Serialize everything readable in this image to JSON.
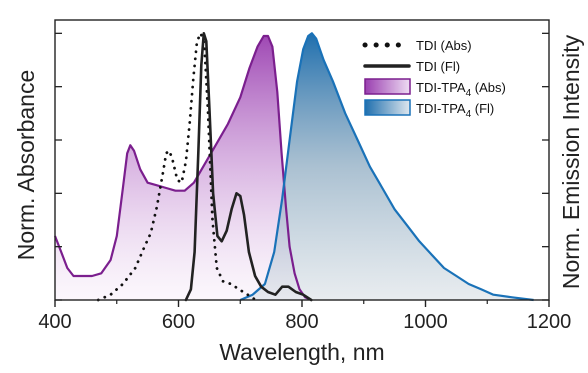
{
  "chart_data": {
    "type": "area",
    "xlabel": "Wavelength, nm",
    "ylabel_left": "Norm. Absorbance",
    "ylabel_right": "Norm. Emission Intensity",
    "xlim": [
      400,
      1200
    ],
    "ylim": [
      0,
      1.05
    ],
    "x_ticks": [
      400,
      600,
      800,
      1000,
      1200
    ],
    "x_tick_labels": [
      "400",
      "600",
      "800",
      "1000",
      "1200"
    ],
    "y_ticks_left": [
      0,
      0.2,
      0.4,
      0.6,
      0.8,
      1.0
    ],
    "y_ticks_right": [
      0,
      0.2,
      0.4,
      0.6,
      0.8,
      1.0
    ],
    "grid": false,
    "legend_position": "top-right",
    "series": [
      {
        "name": "TDI (Abs)",
        "legend_main": "TDI (Abs)",
        "legend_sub": "",
        "legend_suffix": "",
        "style": "dotted",
        "color": "#111111",
        "fill": null,
        "points": [
          [
            470,
            0.0
          ],
          [
            490,
            0.02
          ],
          [
            510,
            0.06
          ],
          [
            530,
            0.12
          ],
          [
            545,
            0.2
          ],
          [
            555,
            0.25
          ],
          [
            565,
            0.35
          ],
          [
            575,
            0.48
          ],
          [
            580,
            0.55
          ],
          [
            585,
            0.56
          ],
          [
            590,
            0.53
          ],
          [
            598,
            0.45
          ],
          [
            605,
            0.44
          ],
          [
            612,
            0.52
          ],
          [
            618,
            0.66
          ],
          [
            624,
            0.83
          ],
          [
            630,
            0.97
          ],
          [
            636,
            1.0
          ],
          [
            642,
            0.96
          ],
          [
            648,
            0.7
          ],
          [
            655,
            0.3
          ],
          [
            662,
            0.12
          ],
          [
            672,
            0.07
          ],
          [
            685,
            0.06
          ],
          [
            698,
            0.04
          ],
          [
            712,
            0.02
          ],
          [
            725,
            0.0
          ]
        ]
      },
      {
        "name": "TDI (Fl)",
        "legend_main": "TDI (Fl)",
        "legend_sub": "",
        "legend_suffix": "",
        "style": "solid",
        "color": "#222222",
        "fill": null,
        "points": [
          [
            612,
            0.0
          ],
          [
            620,
            0.04
          ],
          [
            626,
            0.18
          ],
          [
            632,
            0.55
          ],
          [
            637,
            0.88
          ],
          [
            641,
            1.0
          ],
          [
            645,
            0.97
          ],
          [
            650,
            0.72
          ],
          [
            656,
            0.4
          ],
          [
            663,
            0.24
          ],
          [
            670,
            0.22
          ],
          [
            678,
            0.26
          ],
          [
            686,
            0.34
          ],
          [
            694,
            0.4
          ],
          [
            700,
            0.39
          ],
          [
            706,
            0.32
          ],
          [
            714,
            0.18
          ],
          [
            724,
            0.09
          ],
          [
            734,
            0.05
          ],
          [
            745,
            0.03
          ],
          [
            757,
            0.02
          ],
          [
            768,
            0.05
          ],
          [
            778,
            0.05
          ],
          [
            790,
            0.03
          ],
          [
            802,
            0.02
          ],
          [
            815,
            0.0
          ]
        ]
      },
      {
        "name": "TDI-TPA4 (Abs)",
        "legend_main": "TDI-TPA",
        "legend_sub": "4",
        "legend_suffix": "(Abs)",
        "style": "solid",
        "color": "#7b1f8e",
        "fill": "purple-gradient",
        "points": [
          [
            400,
            0.24
          ],
          [
            410,
            0.18
          ],
          [
            420,
            0.12
          ],
          [
            430,
            0.09
          ],
          [
            445,
            0.09
          ],
          [
            460,
            0.09
          ],
          [
            475,
            0.1
          ],
          [
            490,
            0.15
          ],
          [
            500,
            0.24
          ],
          [
            510,
            0.42
          ],
          [
            517,
            0.55
          ],
          [
            522,
            0.58
          ],
          [
            528,
            0.56
          ],
          [
            538,
            0.49
          ],
          [
            550,
            0.44
          ],
          [
            565,
            0.43
          ],
          [
            580,
            0.42
          ],
          [
            595,
            0.41
          ],
          [
            610,
            0.41
          ],
          [
            625,
            0.44
          ],
          [
            640,
            0.5
          ],
          [
            660,
            0.58
          ],
          [
            680,
            0.66
          ],
          [
            700,
            0.76
          ],
          [
            715,
            0.87
          ],
          [
            728,
            0.95
          ],
          [
            738,
            0.99
          ],
          [
            745,
            0.99
          ],
          [
            752,
            0.95
          ],
          [
            760,
            0.78
          ],
          [
            767,
            0.55
          ],
          [
            774,
            0.35
          ],
          [
            780,
            0.2
          ],
          [
            788,
            0.1
          ],
          [
            796,
            0.04
          ],
          [
            805,
            0.01
          ],
          [
            815,
            0.0
          ]
        ]
      },
      {
        "name": "TDI-TPA4 (Fl)",
        "legend_main": "TDI-TPA",
        "legend_sub": "4",
        "legend_suffix": "(Fl)",
        "style": "solid",
        "color": "#1a72b8",
        "fill": "blue-gradient",
        "points": [
          [
            700,
            0.0
          ],
          [
            720,
            0.02
          ],
          [
            740,
            0.06
          ],
          [
            755,
            0.18
          ],
          [
            768,
            0.38
          ],
          [
            780,
            0.6
          ],
          [
            792,
            0.82
          ],
          [
            802,
            0.94
          ],
          [
            810,
            0.99
          ],
          [
            816,
            1.0
          ],
          [
            823,
            0.98
          ],
          [
            835,
            0.9
          ],
          [
            850,
            0.82
          ],
          [
            870,
            0.7
          ],
          [
            890,
            0.6
          ],
          [
            910,
            0.5
          ],
          [
            930,
            0.42
          ],
          [
            950,
            0.34
          ],
          [
            970,
            0.28
          ],
          [
            990,
            0.22
          ],
          [
            1010,
            0.17
          ],
          [
            1030,
            0.12
          ],
          [
            1050,
            0.09
          ],
          [
            1070,
            0.06
          ],
          [
            1090,
            0.04
          ],
          [
            1110,
            0.02
          ],
          [
            1140,
            0.01
          ],
          [
            1175,
            0.0
          ]
        ]
      }
    ]
  }
}
